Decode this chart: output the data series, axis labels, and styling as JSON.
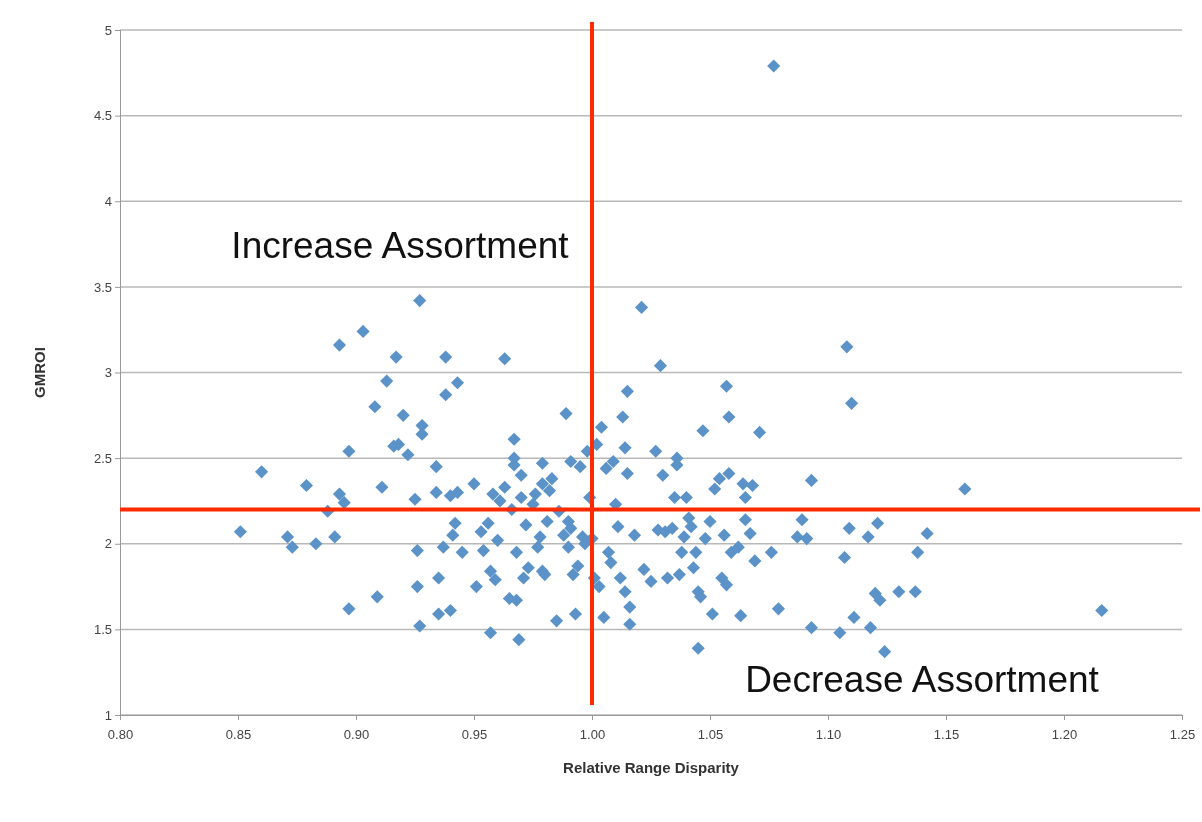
{
  "chart_data": {
    "type": "scatter",
    "xlabel": "Relative Range Disparity",
    "ylabel": "GMROI",
    "xlim": [
      0.8,
      1.25
    ],
    "xticks": [
      {
        "value": 0.8,
        "label": "0.80"
      },
      {
        "value": 0.85,
        "label": "0.85"
      },
      {
        "value": 0.9,
        "label": "0.90"
      },
      {
        "value": 0.95,
        "label": "0.95"
      },
      {
        "value": 1.0,
        "label": "1.00"
      },
      {
        "value": 1.05,
        "label": "1.05"
      },
      {
        "value": 1.1,
        "label": "1.10"
      },
      {
        "value": 1.15,
        "label": "1.15"
      },
      {
        "value": 1.2,
        "label": "1.20"
      },
      {
        "value": 1.25,
        "label": "1.25"
      }
    ],
    "ylim": [
      1,
      5
    ],
    "yticks": [
      1,
      1.5,
      2,
      2.5,
      3,
      3.5,
      4,
      4.5,
      5
    ],
    "grid": "y",
    "marker": "diamond",
    "ref_lines": [
      {
        "axis": "x",
        "value": 1.0,
        "color": "#ff2a00"
      },
      {
        "axis": "y",
        "value": 2.2,
        "color": "#ff2a00"
      }
    ],
    "annotations": [
      "Increase Assortment",
      "Decrease Assortment"
    ],
    "series": [
      {
        "color": "#5b93c9",
        "x": [
          0.851,
          0.86,
          0.871,
          0.873,
          0.879,
          0.883,
          0.888,
          0.891,
          0.893,
          0.895,
          0.897,
          0.897,
          0.893,
          0.903,
          0.908,
          0.909,
          0.911,
          0.913,
          0.916,
          0.917,
          0.918,
          0.92,
          0.922,
          0.925,
          0.926,
          0.926,
          0.927,
          0.927,
          0.928,
          0.928,
          0.934,
          0.934,
          0.935,
          0.935,
          0.937,
          0.938,
          0.938,
          0.94,
          0.94,
          0.941,
          0.942,
          0.943,
          0.943,
          0.945,
          0.95,
          0.951,
          0.953,
          0.954,
          0.956,
          0.957,
          0.957,
          0.958,
          0.959,
          0.96,
          0.961,
          0.963,
          0.963,
          0.965,
          0.966,
          0.967,
          0.967,
          0.967,
          0.968,
          0.968,
          0.969,
          0.97,
          0.97,
          0.971,
          0.972,
          0.973,
          0.975,
          0.976,
          0.977,
          0.978,
          0.979,
          0.979,
          0.979,
          0.98,
          0.981,
          0.982,
          0.983,
          0.985,
          0.986,
          0.988,
          0.989,
          0.99,
          0.99,
          0.991,
          0.991,
          0.992,
          0.993,
          0.994,
          0.995,
          0.996,
          0.997,
          0.998,
          0.999,
          1.0,
          1.001,
          1.002,
          1.003,
          1.004,
          1.005,
          1.006,
          1.007,
          1.008,
          1.009,
          1.01,
          1.011,
          1.012,
          1.013,
          1.014,
          1.014,
          1.015,
          1.015,
          1.016,
          1.016,
          1.018,
          1.021,
          1.022,
          1.025,
          1.027,
          1.028,
          1.029,
          1.03,
          1.031,
          1.032,
          1.034,
          1.035,
          1.036,
          1.036,
          1.037,
          1.038,
          1.039,
          1.04,
          1.041,
          1.042,
          1.043,
          1.044,
          1.045,
          1.045,
          1.046,
          1.047,
          1.048,
          1.05,
          1.051,
          1.052,
          1.054,
          1.055,
          1.056,
          1.057,
          1.057,
          1.058,
          1.058,
          1.059,
          1.062,
          1.063,
          1.064,
          1.065,
          1.065,
          1.067,
          1.068,
          1.069,
          1.071,
          1.076,
          1.077,
          1.079,
          1.087,
          1.089,
          1.091,
          1.093,
          1.093,
          1.105,
          1.107,
          1.108,
          1.109,
          1.11,
          1.111,
          1.117,
          1.118,
          1.12,
          1.121,
          1.122,
          1.124,
          1.13,
          1.137,
          1.138,
          1.142,
          1.158,
          1.216
        ],
        "values": [
          2.07,
          2.42,
          2.04,
          1.98,
          2.34,
          2.0,
          2.19,
          2.04,
          2.29,
          2.24,
          2.54,
          1.62,
          3.16,
          3.24,
          2.8,
          1.69,
          2.33,
          2.95,
          2.57,
          3.09,
          2.58,
          2.75,
          2.52,
          2.26,
          1.96,
          1.75,
          1.52,
          3.42,
          2.69,
          2.64,
          2.45,
          2.3,
          1.8,
          1.59,
          1.98,
          2.87,
          3.09,
          1.61,
          2.28,
          2.05,
          2.12,
          2.94,
          2.3,
          1.95,
          2.35,
          1.75,
          2.07,
          1.96,
          2.12,
          1.48,
          1.84,
          2.29,
          1.79,
          2.02,
          2.25,
          3.08,
          2.33,
          1.68,
          2.2,
          2.61,
          2.5,
          2.46,
          1.95,
          1.67,
          1.44,
          2.27,
          2.4,
          1.8,
          2.11,
          1.86,
          2.23,
          2.29,
          1.98,
          2.04,
          2.35,
          2.47,
          1.84,
          1.82,
          2.13,
          2.31,
          2.38,
          1.55,
          2.19,
          2.05,
          2.76,
          2.13,
          1.98,
          2.48,
          2.09,
          1.82,
          1.59,
          1.87,
          2.45,
          2.04,
          2.0,
          2.54,
          2.27,
          2.03,
          1.8,
          2.58,
          1.75,
          2.68,
          1.57,
          2.44,
          1.95,
          1.89,
          2.48,
          2.23,
          2.1,
          1.8,
          2.74,
          2.56,
          1.72,
          2.89,
          2.41,
          1.53,
          1.63,
          2.05,
          3.38,
          1.85,
          1.78,
          2.54,
          2.08,
          3.04,
          2.4,
          2.07,
          1.8,
          2.09,
          2.27,
          2.5,
          2.46,
          1.82,
          1.95,
          2.04,
          2.27,
          2.15,
          2.1,
          1.86,
          1.95,
          1.72,
          1.39,
          1.69,
          2.66,
          2.03,
          2.13,
          1.59,
          2.32,
          2.38,
          1.8,
          2.05,
          1.76,
          2.92,
          2.41,
          2.74,
          1.95,
          1.98,
          1.58,
          2.35,
          2.14,
          2.27,
          2.06,
          2.34,
          1.9,
          2.65,
          1.95,
          4.79,
          1.62,
          2.04,
          2.14,
          2.03,
          2.37,
          1.51,
          1.48,
          1.92,
          3.15,
          2.09,
          2.82,
          1.57,
          2.04,
          1.51,
          1.71,
          2.12,
          1.67,
          1.37,
          1.72,
          1.72,
          1.95,
          2.06,
          2.32,
          1.61
        ]
      }
    ]
  }
}
